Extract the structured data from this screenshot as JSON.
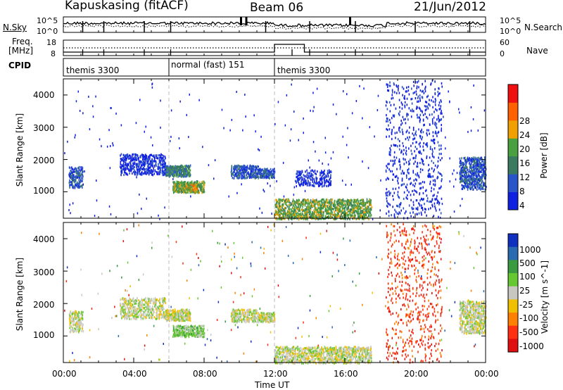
{
  "header": {
    "station": "Kapuskasing (fitACF)",
    "beam": "Beam 06",
    "date": "21/Jun/2012"
  },
  "summary_panels": {
    "nsky_label": "N.Sky",
    "nsky_ticks": [
      "10^5",
      "10^0"
    ],
    "nsearch_label": "N.Search",
    "nsearch_ticks": [
      "10^5",
      "10^0"
    ],
    "freq_label_line1": "Freq.",
    "freq_label_line2": "[MHz]",
    "freq_ticks": [
      "18",
      "8"
    ],
    "nave_label": "Nave",
    "nave_ticks": [
      "60",
      "0"
    ],
    "cpid_label": "CPID",
    "cpid_segments": [
      {
        "label": "themis 3300",
        "start_ut": 0,
        "end_ut": 6
      },
      {
        "label": "normal (fast) 151",
        "start_ut": 6,
        "end_ut": 12
      },
      {
        "label": "themis 3300",
        "start_ut": 12,
        "end_ut": 24
      }
    ]
  },
  "chart_data": [
    {
      "type": "heatmap",
      "name": "power",
      "ylabel": "Slant Range [km]",
      "yticks": [
        1000,
        2000,
        3000,
        4000
      ],
      "ylim": [
        180,
        4500
      ],
      "xlim": [
        0,
        24
      ],
      "colorbar_label": "Power [dB]",
      "colorbar_ticks": [
        "4",
        "8",
        "12",
        "16",
        "20",
        "24",
        "28"
      ],
      "colorbar_colors": [
        "#1020e0",
        "#2a55c8",
        "#3a7a60",
        "#4aa040",
        "#f0a000",
        "#ff6000",
        "#f01010"
      ],
      "regions": [
        {
          "ut_start": 0.3,
          "ut_end": 1.1,
          "range_start": 1150,
          "range_end": 1800,
          "level": 1,
          "density": 0.5
        },
        {
          "ut_start": 3.2,
          "ut_end": 5.8,
          "range_start": 1550,
          "range_end": 2200,
          "level": 0,
          "density": 0.45
        },
        {
          "ut_start": 5.8,
          "ut_end": 7.2,
          "range_start": 1500,
          "range_end": 1850,
          "level": 2,
          "density": 0.75
        },
        {
          "ut_start": 6.2,
          "ut_end": 8.0,
          "range_start": 1000,
          "range_end": 1350,
          "level": 3,
          "density": 0.75
        },
        {
          "ut_start": 6.9,
          "ut_end": 7.6,
          "range_start": 1080,
          "range_end": 1250,
          "level": 4,
          "density": 0.6
        },
        {
          "ut_start": 9.5,
          "ut_end": 11.0,
          "range_start": 1450,
          "range_end": 1850,
          "level": 1,
          "density": 0.55
        },
        {
          "ut_start": 11.0,
          "ut_end": 12.0,
          "range_start": 1450,
          "range_end": 1750,
          "level": 1,
          "density": 0.7
        },
        {
          "ut_start": 12.0,
          "ut_end": 17.5,
          "range_start": 180,
          "range_end": 800,
          "level": 3,
          "density": 0.5
        },
        {
          "ut_start": 13.2,
          "ut_end": 15.2,
          "range_start": 1200,
          "range_end": 1700,
          "level": 0,
          "density": 0.35
        },
        {
          "ut_start": 18.3,
          "ut_end": 21.5,
          "range_start": 200,
          "range_end": 4500,
          "level": 0,
          "density": 0.08
        },
        {
          "ut_start": 22.5,
          "ut_end": 24.0,
          "range_start": 1100,
          "range_end": 2100,
          "level": 1,
          "density": 0.5
        }
      ]
    },
    {
      "type": "heatmap",
      "name": "velocity",
      "ylabel": "Slant Range [km]",
      "xlabel": "Time UT",
      "xticks": [
        "00:00",
        "04:00",
        "08:00",
        "12:00",
        "16:00",
        "20:00",
        "00:00"
      ],
      "yticks": [
        1000,
        2000,
        3000,
        4000
      ],
      "ylim": [
        180,
        4500
      ],
      "xlim": [
        0,
        24
      ],
      "colorbar_label": "Velocity [m s^-1]",
      "colorbar_ticks": [
        "1000",
        "500",
        "100",
        "25",
        "-25",
        "-100",
        "-500",
        "-1000"
      ],
      "colorbar_colors": [
        "#1030c0",
        "#2a6ab0",
        "#3a9a40",
        "#66c830",
        "#c8c8c0",
        "#f0c000",
        "#ff8000",
        "#ff3010",
        "#e01010"
      ],
      "regions": [
        {
          "ut_start": 0.3,
          "ut_end": 1.1,
          "range_start": 1150,
          "range_end": 1800,
          "level": 4,
          "density": 0.45
        },
        {
          "ut_start": 3.2,
          "ut_end": 5.8,
          "range_start": 1550,
          "range_end": 2200,
          "level": 4,
          "density": 0.4
        },
        {
          "ut_start": 5.8,
          "ut_end": 7.2,
          "range_start": 1500,
          "range_end": 1850,
          "level": 4,
          "density": 0.7
        },
        {
          "ut_start": 6.2,
          "ut_end": 8.0,
          "range_start": 1000,
          "range_end": 1350,
          "level": 3,
          "density": 0.6
        },
        {
          "ut_start": 9.5,
          "ut_end": 11.0,
          "range_start": 1450,
          "range_end": 1850,
          "level": 4,
          "density": 0.55
        },
        {
          "ut_start": 11.0,
          "ut_end": 12.0,
          "range_start": 1450,
          "range_end": 1750,
          "level": 4,
          "density": 0.7
        },
        {
          "ut_start": 12.0,
          "ut_end": 17.5,
          "range_start": 180,
          "range_end": 700,
          "level": 4,
          "density": 0.5
        },
        {
          "ut_start": 18.3,
          "ut_end": 21.5,
          "range_start": 200,
          "range_end": 4500,
          "level": 7,
          "density": 0.07
        },
        {
          "ut_start": 22.5,
          "ut_end": 24.0,
          "range_start": 1100,
          "range_end": 2100,
          "level": 4,
          "density": 0.5
        }
      ]
    }
  ]
}
